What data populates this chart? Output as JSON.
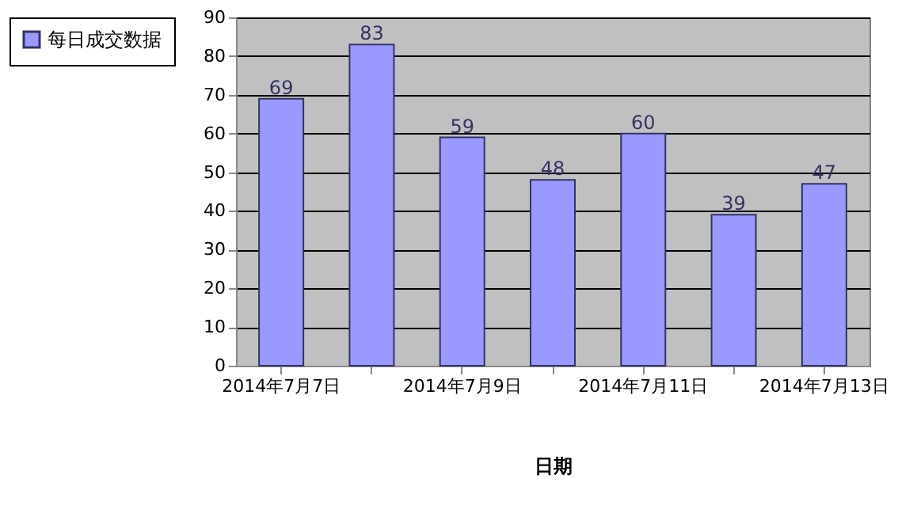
{
  "chart_data": {
    "type": "bar",
    "xlabel": "日期",
    "categories": [
      "2014年7月7日",
      null,
      "2014年7月9日",
      null,
      "2014年7月11日",
      null,
      "2014年7月13日"
    ],
    "series": [
      {
        "name": "每日成交数据",
        "color": "#9999ff",
        "values": [
          69,
          83,
          59,
          48,
          60,
          39,
          47
        ]
      }
    ],
    "ylim": [
      0,
      90
    ],
    "yticks": [
      0,
      10,
      20,
      30,
      40,
      50,
      60,
      70,
      80,
      90
    ],
    "grid": "y",
    "legend": "left",
    "data_labels": true
  }
}
